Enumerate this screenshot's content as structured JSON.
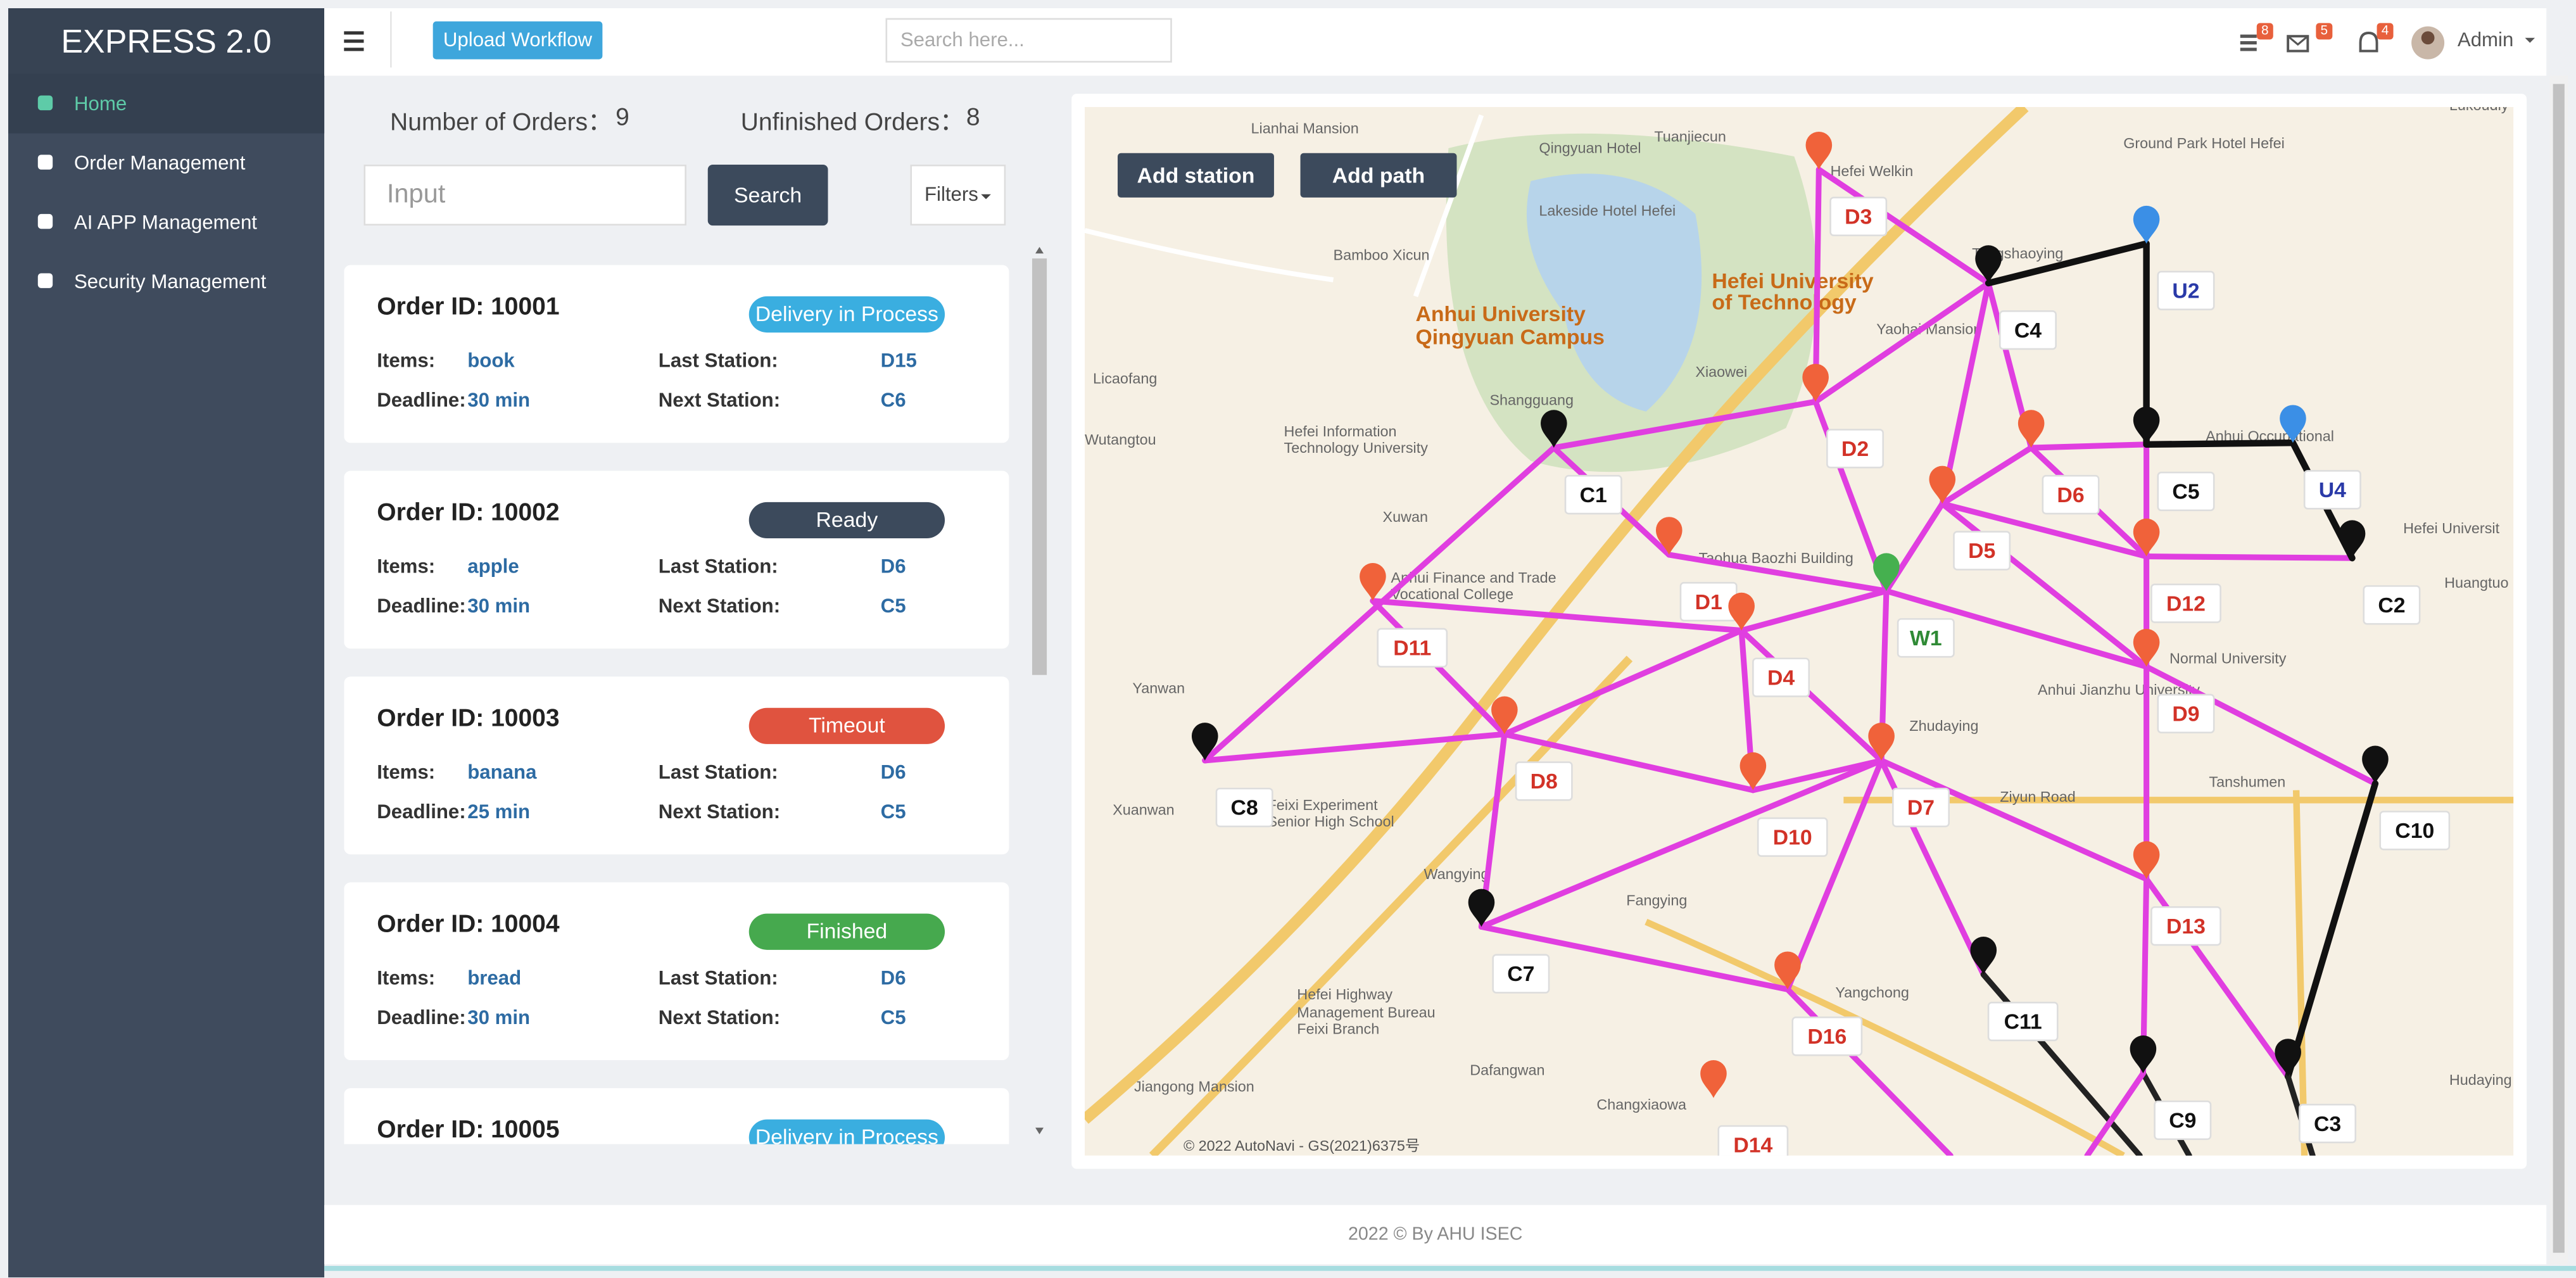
{
  "sidebar": {
    "title": "EXPRESS 2.0",
    "menu": [
      "Home",
      "Order Management",
      "AI APP Management",
      "Security Management"
    ]
  },
  "topbar": {
    "upload_button": "Upload Workflow",
    "search_placeholder": "Search here...",
    "badges": [
      "8",
      "5",
      "4"
    ],
    "user": "Admin"
  },
  "stats": {
    "orders_label": "Number of Orders：",
    "orders": 9,
    "unfinished_label": "Unfinished Orders：",
    "unfinished": 8
  },
  "search": {
    "placeholder": "Input",
    "button": "Search",
    "filters": "Filters"
  },
  "order_labels": {
    "items": "Items:",
    "last": "Last Station:",
    "deadline": "Deadline:",
    "next": "Next Station:"
  },
  "orders": [
    {
      "id": "Order ID: 10001",
      "status": "Delivery in Process",
      "items": "book",
      "last": "D15",
      "deadline": "30 min",
      "next": "C6"
    },
    {
      "id": "Order ID: 10002",
      "status": "Ready",
      "items": "apple",
      "last": "D6",
      "deadline": "30 min",
      "next": "C5"
    },
    {
      "id": "Order ID: 10003",
      "status": "Timeout",
      "items": "banana",
      "last": "D6",
      "deadline": "25 min",
      "next": "C5"
    },
    {
      "id": "Order ID: 10004",
      "status": "Finished",
      "items": "bread",
      "last": "D6",
      "deadline": "30 min",
      "next": "C5"
    },
    {
      "id": "Order ID: 10005",
      "status": "Delivery in Process"
    }
  ],
  "map": {
    "buttons": [
      "Add station",
      "Add path"
    ],
    "stations": [
      "D3",
      "U2",
      "C4",
      "D2",
      "C1",
      "D6",
      "C5",
      "U4",
      "D5",
      "D1",
      "D12",
      "C2",
      "W1",
      "D11",
      "D4",
      "D9",
      "D8",
      "C8",
      "D7",
      "C10",
      "D10",
      "D13",
      "C7",
      "C11",
      "D16",
      "C9",
      "C3",
      "D14"
    ],
    "places": [
      "Lianhai Mansion",
      "Qingyuan Hotel",
      "Tuanjiecun",
      "Hefei Welkin",
      "Ground Park Hotel Hefei",
      "Tangshaoying",
      "Lakeside Hotel Hefei",
      "Bamboo Xicun",
      "Anhui University",
      "Qingyuan Campus",
      "Hefei University",
      "of Technology",
      "Licaofang",
      "Wutangtou",
      "Hefei Information",
      "Technology University",
      "Shangguang",
      "Xuwan",
      "Taohua Baozhi Building",
      "Anhui Finance and Trade",
      "Vocational College",
      "Normal University",
      "Anhui Jianzhu University",
      "Zhudaying",
      "Ziyun Road",
      "Tanshumen",
      "Yanwan",
      "Xuanwan",
      "Feixi Experiment",
      "Senior High School",
      "Wangying",
      "Fangying",
      "Hefei Highway",
      "Management Bureau",
      "Feixi Branch",
      "Yangchong",
      "Jiangong Mansion",
      "Dafangwan",
      "Changxiaowa",
      "Hudaying",
      "Yaohai Mansion",
      "Xiaowei",
      "Anhui Occupational",
      "Hefei Universit",
      "Huangtuo",
      "Lukoudiy"
    ],
    "copyright": "© 2022 AutoNavi - GS(2021)6375号"
  },
  "footer": "2022 © By AHU ISEC"
}
